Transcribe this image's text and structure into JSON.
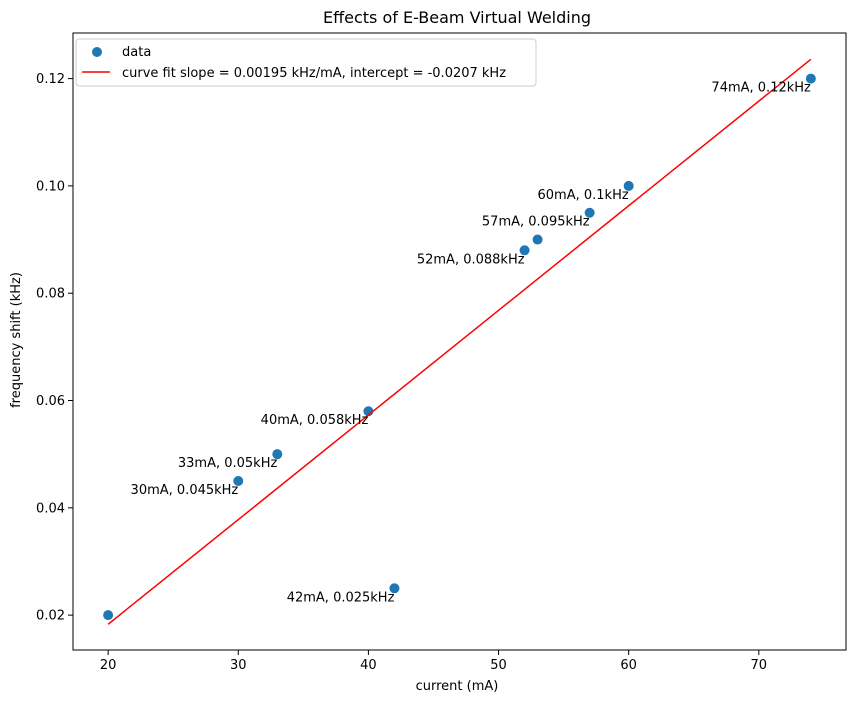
{
  "chart_data": {
    "type": "scatter",
    "title": "Effects of E-Beam Virtual Welding",
    "xlabel": "current (mA)",
    "ylabel": "frequency shift (kHz)",
    "xlim": [
      17.3,
      76.7
    ],
    "ylim": [
      0.0135,
      0.1285
    ],
    "xticks": [
      20,
      30,
      40,
      50,
      60,
      70
    ],
    "yticks": [
      0.02,
      0.04,
      0.06,
      0.08,
      0.1,
      0.12
    ],
    "xtick_labels": [
      "20",
      "30",
      "40",
      "50",
      "60",
      "70"
    ],
    "ytick_labels": [
      "0.02",
      "0.04",
      "0.06",
      "0.08",
      "0.10",
      "0.12"
    ],
    "grid": false,
    "legend_position": "top-left",
    "colors": {
      "data": "#1f77b4",
      "fit": "#ff0000"
    },
    "series": [
      {
        "name": "data",
        "kind": "scatter",
        "x": [
          20,
          30,
          33,
          40,
          42,
          52,
          53,
          57,
          60,
          74
        ],
        "y": [
          0.02,
          0.045,
          0.05,
          0.058,
          0.025,
          0.088,
          0.09,
          0.095,
          0.1,
          0.12
        ]
      },
      {
        "name": "curve fit slope = 0.00195 kHz/mA, intercept = -0.0207 kHz",
        "kind": "line",
        "slope": 0.00195,
        "intercept": -0.0207,
        "x": [
          20,
          74
        ]
      }
    ],
    "annotations": [
      {
        "text": "30mA, 0.045kHz",
        "x": 30,
        "y": 0.045
      },
      {
        "text": "33mA, 0.05kHz",
        "x": 33,
        "y": 0.05
      },
      {
        "text": "40mA, 0.058kHz",
        "x": 40,
        "y": 0.058
      },
      {
        "text": "42mA, 0.025kHz",
        "x": 42,
        "y": 0.025
      },
      {
        "text": "52mA, 0.088kHz",
        "x": 52,
        "y": 0.088
      },
      {
        "text": "57mA, 0.095kHz",
        "x": 57,
        "y": 0.095
      },
      {
        "text": "60mA, 0.1kHz",
        "x": 60,
        "y": 0.1
      },
      {
        "text": "74mA, 0.12kHz",
        "x": 74,
        "y": 0.12
      }
    ]
  }
}
